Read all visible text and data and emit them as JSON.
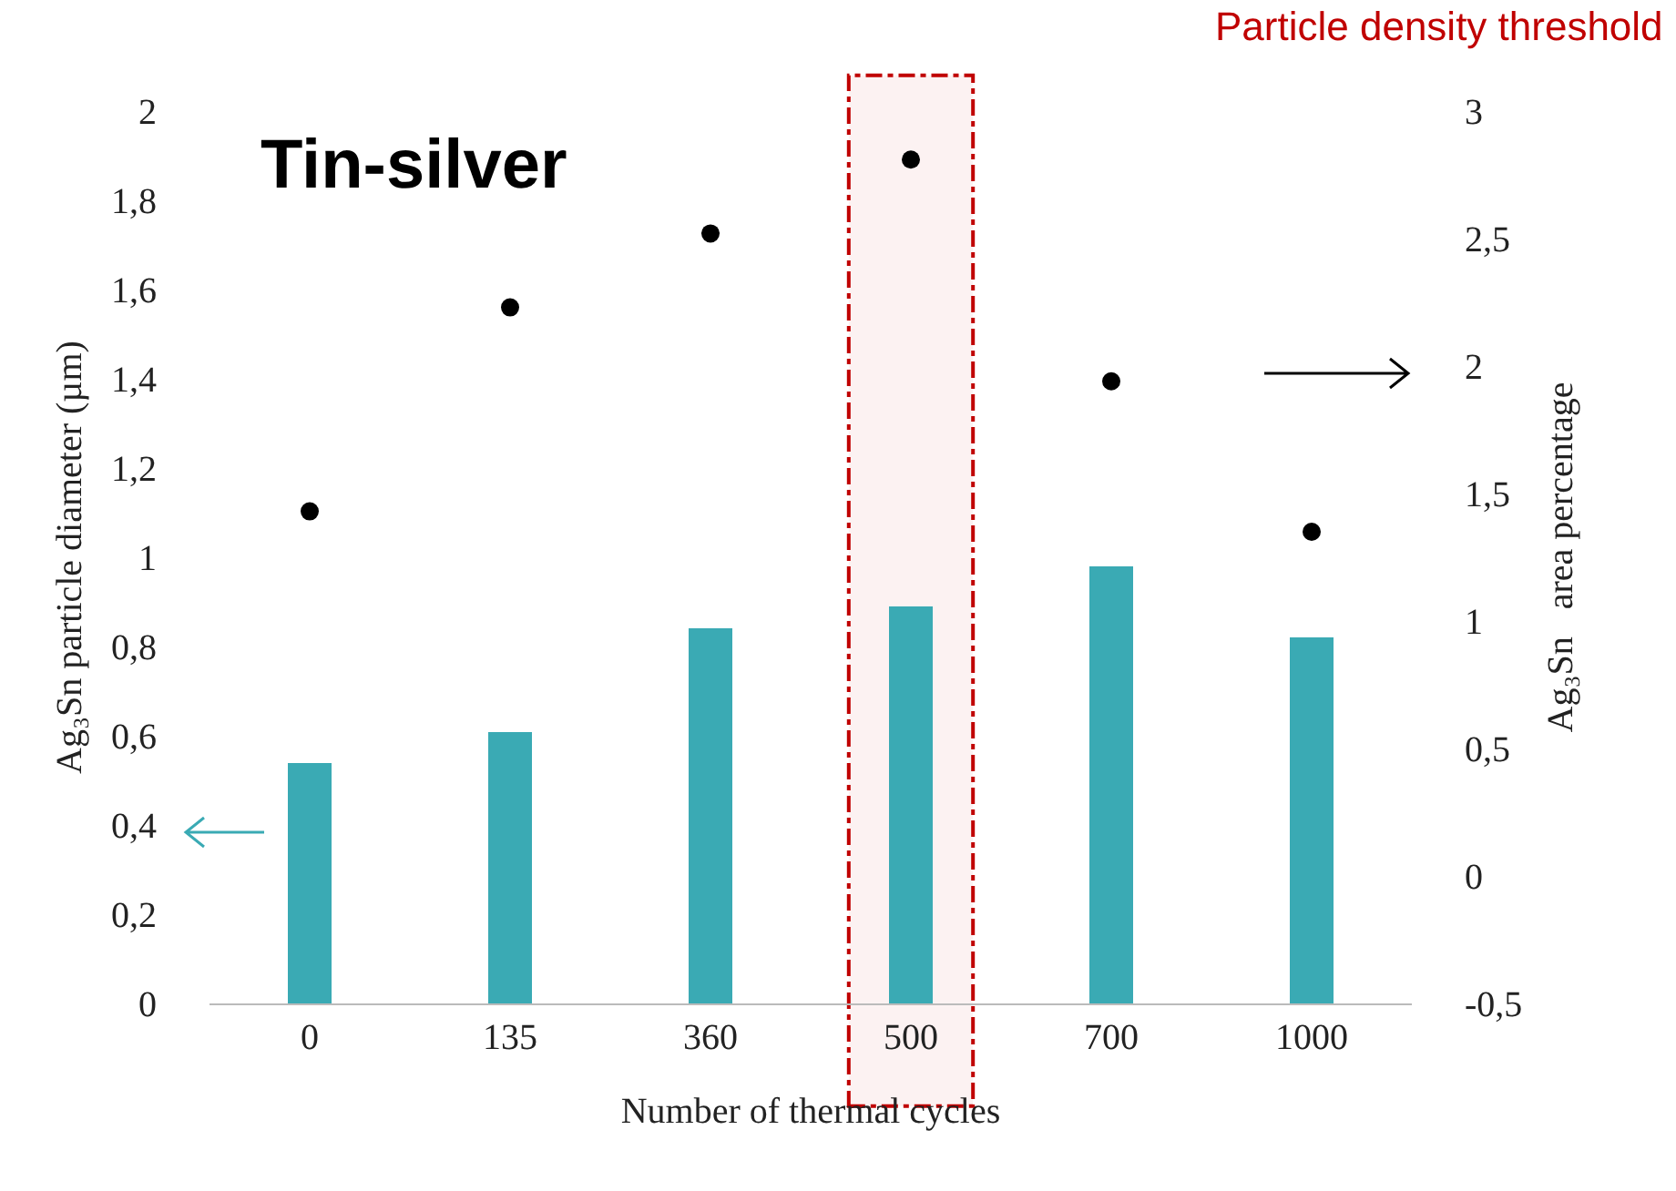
{
  "chart_data": {
    "type": "bar",
    "categories": [
      "0",
      "135",
      "360",
      "500",
      "700",
      "1000"
    ],
    "series": [
      {
        "color": "#3aaab4",
        "values": [
          0.54,
          0.61,
          0.84,
          0.89,
          0.98,
          0.82
        ]
      },
      {
        "type": "scatter",
        "color": "#000000",
        "axis": "y2",
        "marker": "circle",
        "values": [
          1.43,
          2.23,
          2.52,
          2.81,
          1.94,
          1.35
        ]
      }
    ],
    "xlabel": "Number of thermal cycles",
    "ylabel": "Ag₃Sn particle diameter (µm)",
    "y2label": "Ag₃Sn   area percentage",
    "annotations": [
      "Tin-silver"
    ],
    "bands": [
      {
        "axis": "x",
        "from": "500",
        "to": "500",
        "label": "Particle density threshold",
        "color": "#c00000"
      }
    ],
    "ylim": [
      0,
      2
    ],
    "yticks": [
      0,
      {
        "value": 0.2,
        "label": "0,2"
      },
      {
        "value": 0.4,
        "label": "0,4"
      },
      {
        "value": 0.6,
        "label": "0,6"
      },
      {
        "value": 0.8,
        "label": "0,8"
      },
      1,
      {
        "value": 1.2,
        "label": "1,2"
      },
      {
        "value": 1.4,
        "label": "1,4"
      },
      {
        "value": 1.6,
        "label": "1,6"
      },
      {
        "value": 1.8,
        "label": "1,8"
      },
      2
    ],
    "y2lim": [
      -0.5,
      3
    ],
    "y2ticks": [
      {
        "value": -0.5,
        "label": "-0,5"
      },
      0,
      {
        "value": 0.5,
        "label": "0,5"
      },
      1,
      {
        "value": 1.5,
        "label": "1,5"
      },
      2,
      {
        "value": 2.5,
        "label": "2,5"
      },
      3
    ],
    "grid": false,
    "legend": false
  }
}
